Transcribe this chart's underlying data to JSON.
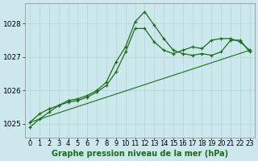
{
  "title": "Graphe pression niveau de la mer (hPa)",
  "background_color": "#cce8ec",
  "plot_bg_color": "#cce8ec",
  "border_color": "#aaaaaa",
  "line_color": "#1a6e1a",
  "x_ticks": [
    0,
    1,
    2,
    3,
    4,
    5,
    6,
    7,
    8,
    9,
    10,
    11,
    12,
    13,
    14,
    15,
    16,
    17,
    18,
    19,
    20,
    21,
    22,
    23
  ],
  "ylim": [
    1024.6,
    1028.6
  ],
  "yticks": [
    1025,
    1026,
    1027,
    1028
  ],
  "series1": {
    "x": [
      0,
      1,
      2,
      3,
      4,
      5,
      6,
      7,
      8,
      9,
      10,
      11,
      12,
      13,
      14,
      15,
      16,
      17,
      18,
      19,
      20,
      21,
      22,
      23
    ],
    "y": [
      1024.9,
      1025.15,
      1025.35,
      1025.55,
      1025.7,
      1025.75,
      1025.85,
      1026.0,
      1026.25,
      1026.85,
      1027.3,
      1028.05,
      1028.35,
      1027.95,
      1027.55,
      1027.2,
      1027.1,
      1027.05,
      1027.1,
      1027.05,
      1027.15,
      1027.5,
      1027.5,
      1027.15
    ]
  },
  "series2": {
    "x": [
      0,
      1,
      2,
      3,
      4,
      5,
      6,
      7,
      8,
      9,
      10,
      11,
      12,
      13,
      14,
      15,
      16,
      17,
      18,
      19,
      20,
      21,
      22,
      23
    ],
    "y": [
      1025.05,
      1025.3,
      1025.45,
      1025.55,
      1025.65,
      1025.7,
      1025.8,
      1025.95,
      1026.15,
      1026.55,
      1027.15,
      1027.85,
      1027.85,
      1027.45,
      1027.2,
      1027.1,
      1027.2,
      1027.3,
      1027.25,
      1027.5,
      1027.55,
      1027.55,
      1027.45,
      1027.2
    ]
  },
  "series3": {
    "x": [
      0,
      23
    ],
    "y": [
      1025.05,
      1027.2
    ]
  },
  "title_fontsize": 7,
  "tick_fontsize": 6
}
